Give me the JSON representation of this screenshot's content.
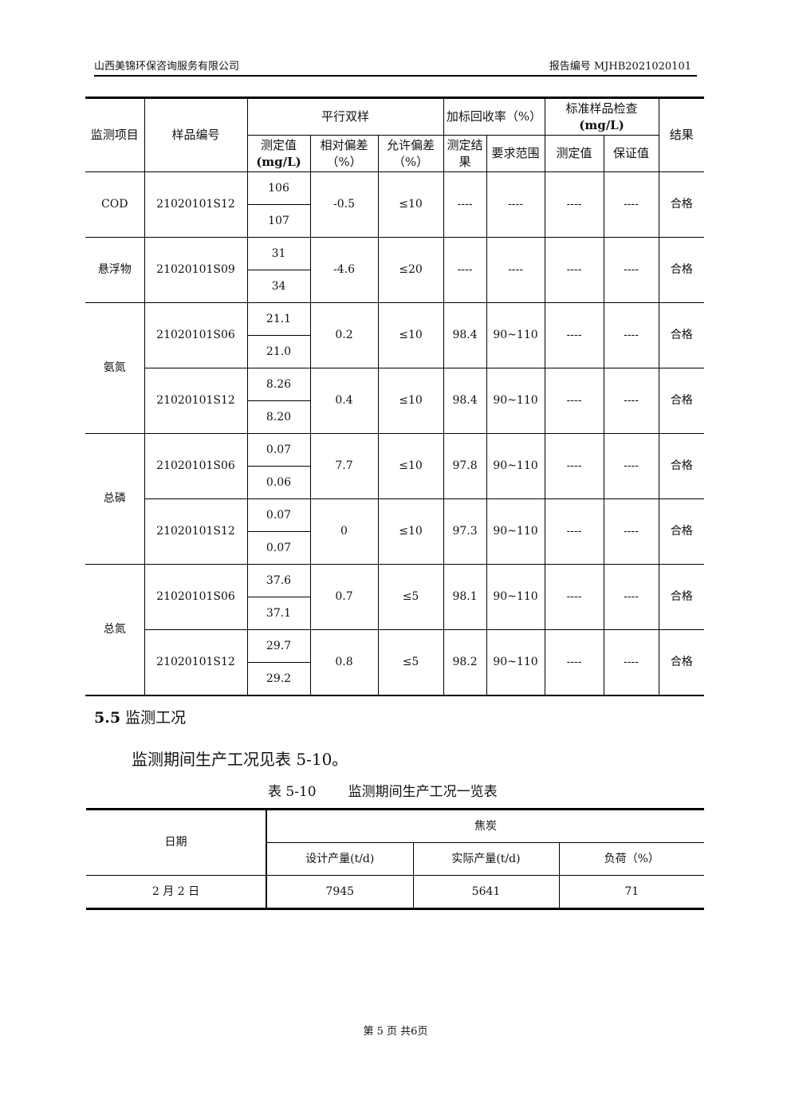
{
  "header": {
    "company": "山西美锦环保咨询服务有限公司",
    "report_no": "报告编号 MJHB2021020101"
  },
  "table1": {
    "headers": {
      "item": "监测项目",
      "sample": "样品编号",
      "parallel": "平行双样",
      "measured": "测定值",
      "measured_unit": "(mg/L)",
      "rel_dev": "相对偏差（%）",
      "allow_dev": "允许偏差（%）",
      "recovery": "加标回收率（%）",
      "rec_result": "测定结果",
      "rec_range": "要求范围",
      "std": "标准样品检查",
      "std_unit": "(mg/L)",
      "std_measured": "测定值",
      "std_guarantee": "保证值",
      "result": "结果"
    },
    "rows": [
      {
        "item": "COD",
        "sample": "21020101S12",
        "v1": "106",
        "v2": "107",
        "rel": "-0.5",
        "allow": "≤10",
        "rec": "----",
        "range": "----",
        "sm": "----",
        "sg": "----",
        "res": "合格"
      },
      {
        "item": "悬浮物",
        "sample": "21020101S09",
        "v1": "31",
        "v2": "34",
        "rel": "-4.6",
        "allow": "≤20",
        "rec": "----",
        "range": "----",
        "sm": "----",
        "sg": "----",
        "res": "合格"
      },
      {
        "item": "氨氮",
        "sample": "21020101S06",
        "v1": "21.1",
        "v2": "21.0",
        "rel": "0.2",
        "allow": "≤10",
        "rec": "98.4",
        "range": "90~110",
        "sm": "----",
        "sg": "----",
        "res": "合格"
      },
      {
        "sample": "21020101S12",
        "v1": "8.26",
        "v2": "8.20",
        "rel": "0.4",
        "allow": "≤10",
        "rec": "98.4",
        "range": "90~110",
        "sm": "----",
        "sg": "----",
        "res": "合格"
      },
      {
        "item": "总磷",
        "sample": "21020101S06",
        "v1": "0.07",
        "v2": "0.06",
        "rel": "7.7",
        "allow": "≤10",
        "rec": "97.8",
        "range": "90~110",
        "sm": "----",
        "sg": "----",
        "res": "合格"
      },
      {
        "sample": "21020101S12",
        "v1": "0.07",
        "v2": "0.07",
        "rel": "0",
        "allow": "≤10",
        "rec": "97.3",
        "range": "90~110",
        "sm": "----",
        "sg": "----",
        "res": "合格"
      },
      {
        "item": "总氮",
        "sample": "21020101S06",
        "v1": "37.6",
        "v2": "37.1",
        "rel": "0.7",
        "allow": "≤5",
        "rec": "98.1",
        "range": "90~110",
        "sm": "----",
        "sg": "----",
        "res": "合格"
      },
      {
        "sample": "21020101S12",
        "v1": "29.7",
        "v2": "29.2",
        "rel": "0.8",
        "allow": "≤5",
        "rec": "98.2",
        "range": "90~110",
        "sm": "----",
        "sg": "----",
        "res": "合格"
      }
    ]
  },
  "section": {
    "number": "5.5",
    "title": "监测工况",
    "paragraph": "监测期间生产工况见表 5-10。"
  },
  "table2": {
    "caption_no": "表 5-10",
    "caption_title": "监测期间生产工况一览表",
    "date_header": "日期",
    "group": "焦炭",
    "cols": [
      "设计产量(t/d)",
      "实际产量(t/d)",
      "负荷（%）"
    ],
    "row": {
      "date": "2 月 2 日",
      "design": "7945",
      "actual": "5641",
      "load": "71"
    }
  },
  "footer": {
    "page": "第 5 页 共6页"
  }
}
